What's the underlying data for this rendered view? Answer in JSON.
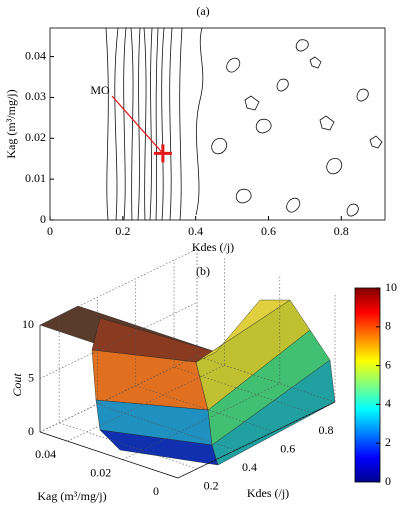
{
  "chart_data": [
    {
      "type": "contour",
      "title": "(a)",
      "xlabel": "Kdes (/j)",
      "ylabel": "Kag (m³/mg/j)",
      "xlim": [
        0,
        0.92
      ],
      "ylim": [
        0,
        0.047
      ],
      "xticks": [
        0,
        0.2,
        0.4,
        0.6,
        0.8
      ],
      "yticks": [
        0,
        0.01,
        0.02,
        0.03,
        0.04
      ],
      "annotation": "MO",
      "x": [
        0.31
      ],
      "y": [
        0.0163
      ],
      "color": "#e01818"
    },
    {
      "type": "surface3d",
      "title": "(b)",
      "xlabel": "Kdes (/j)",
      "ylabel": "Kag (m³/mg/j)",
      "zlabel": "Cout",
      "xlim": [
        0.1,
        0.92
      ],
      "ylim": [
        0,
        0.05
      ],
      "zlim": [
        0,
        10
      ],
      "xticks": [
        0.2,
        0.4,
        0.6,
        0.8
      ],
      "yticks": [
        0,
        0.02,
        0.04
      ],
      "zticks": [
        0,
        5,
        10
      ],
      "colorbar_lim": [
        0,
        10
      ],
      "colorbar_ticks": [
        0,
        2,
        4,
        6,
        8,
        10
      ],
      "grid": true
    }
  ]
}
